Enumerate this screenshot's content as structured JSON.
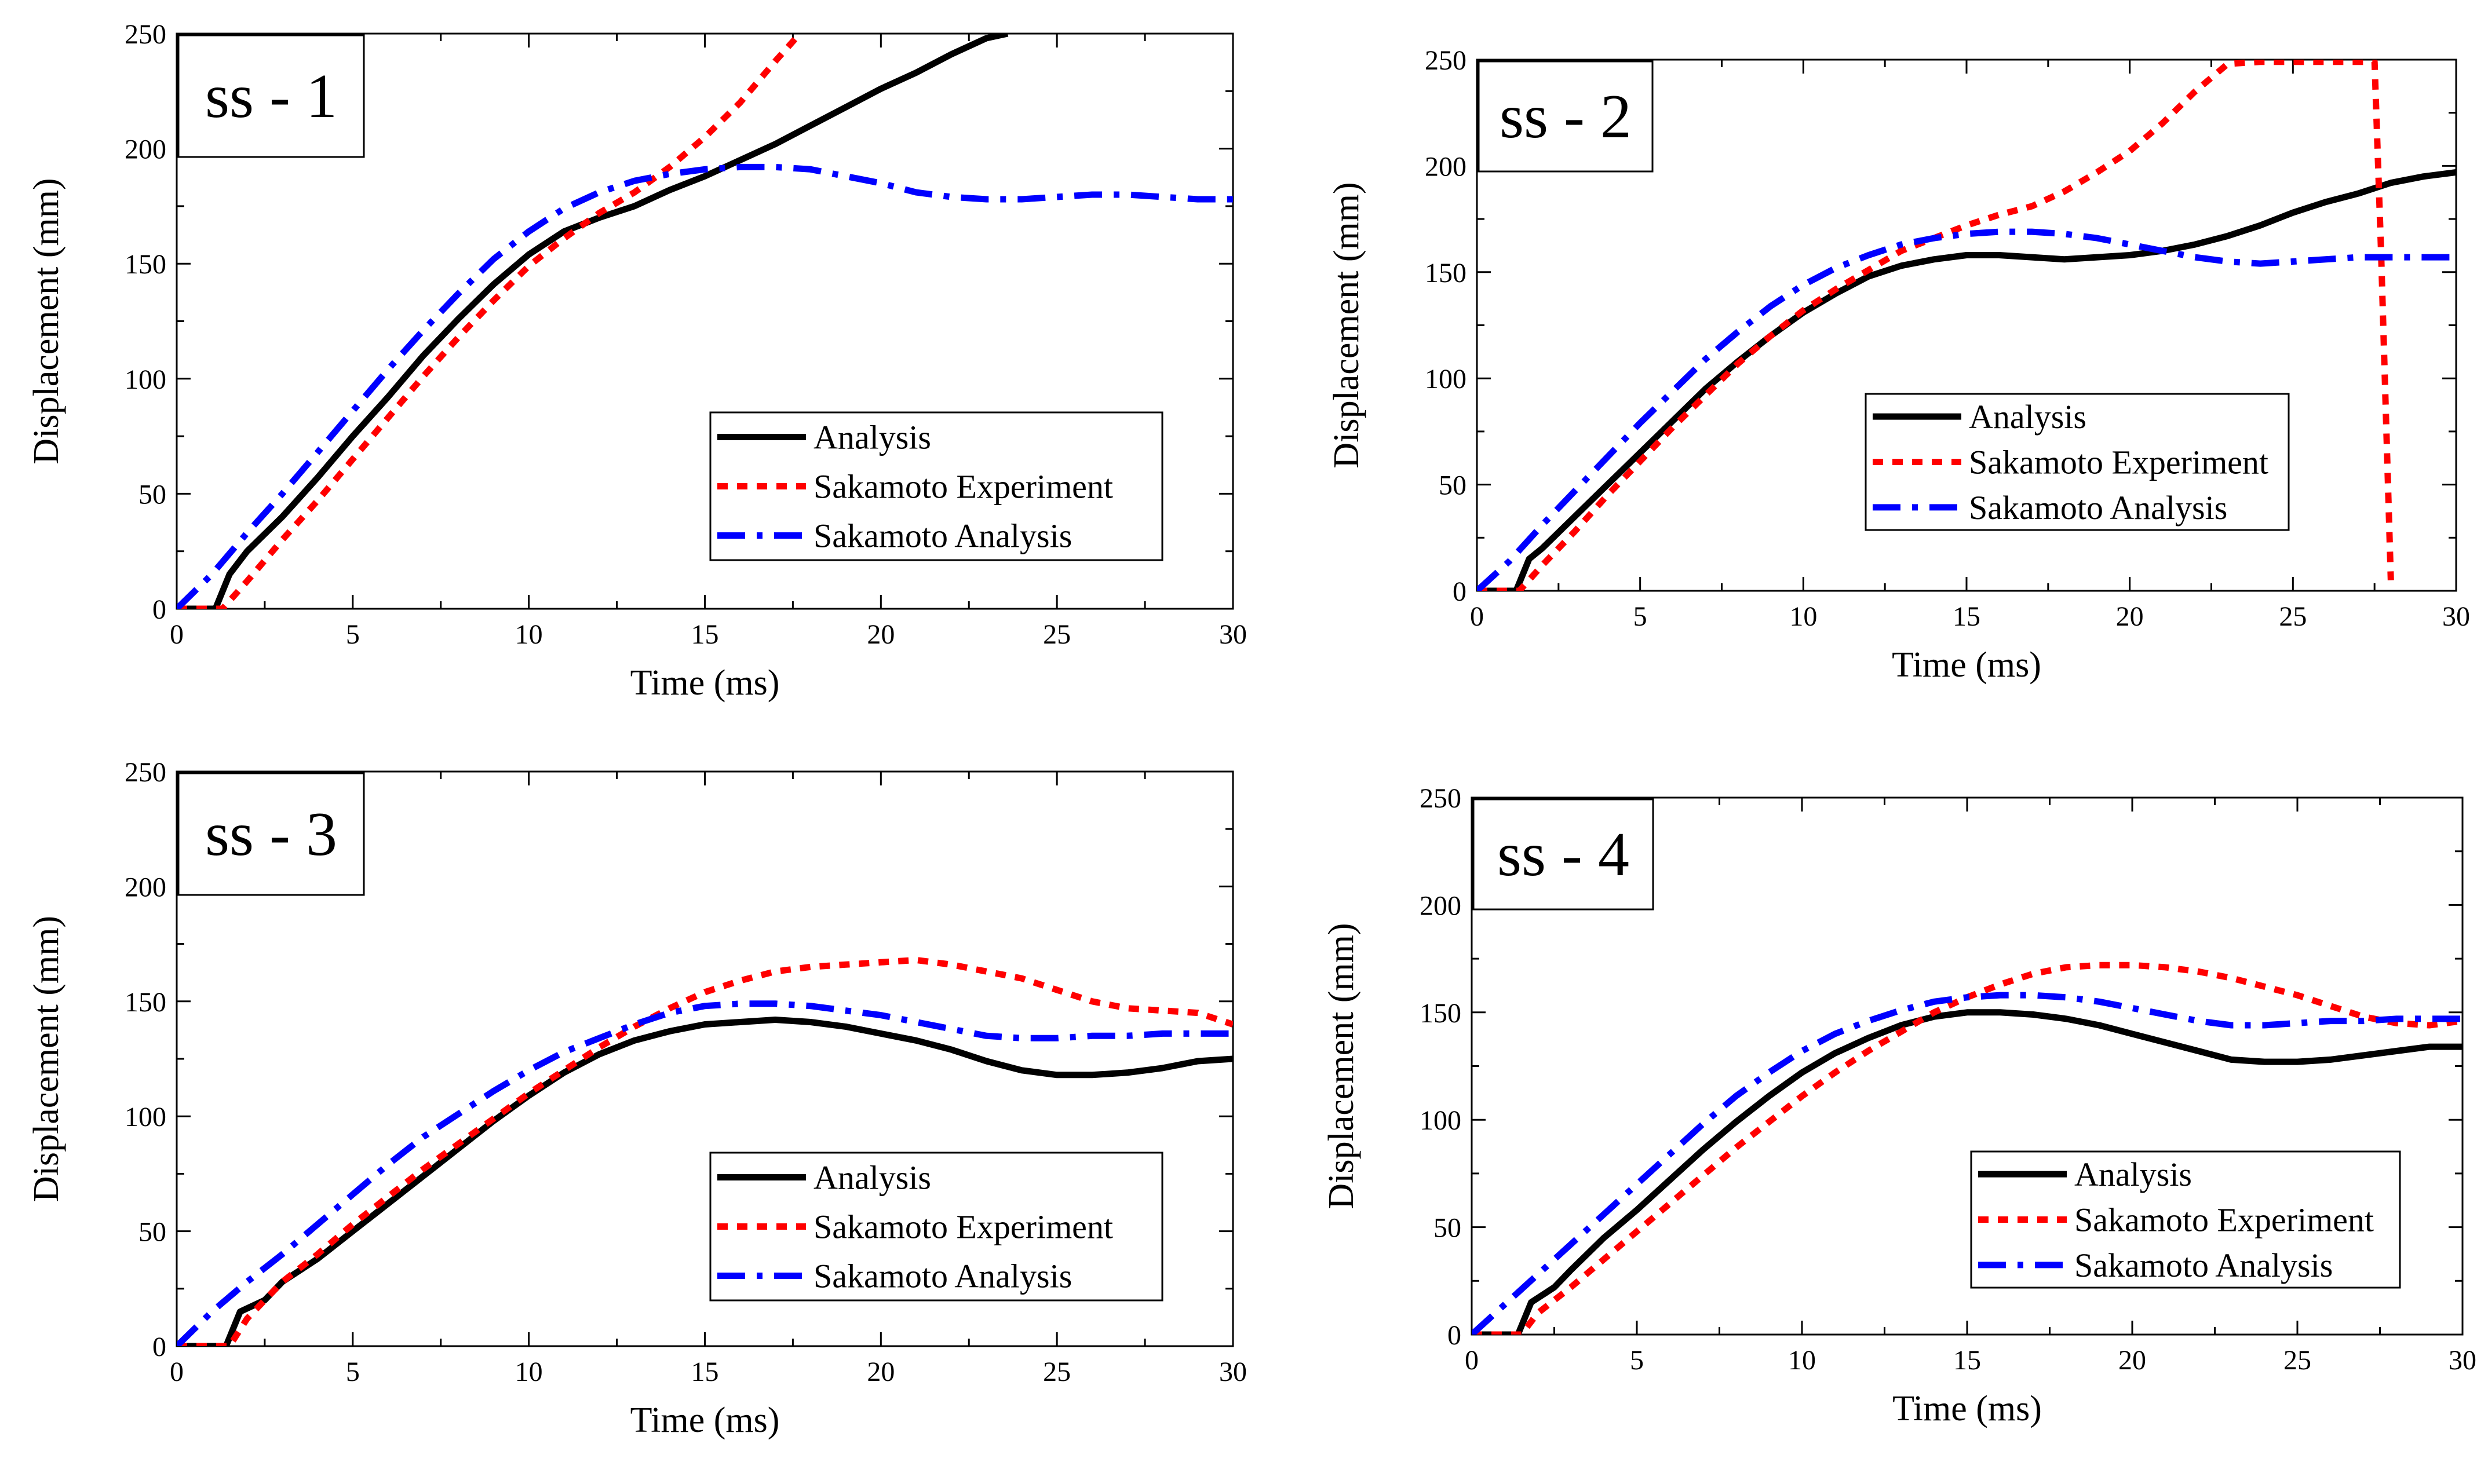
{
  "figure_title": "",
  "colors": {
    "analysis": "#000000",
    "experiment": "#ff0000",
    "sakamoto": "#0000ff"
  },
  "chart_data": [
    {
      "type": "line",
      "panel_label": "ss - 1",
      "xlabel": "Time (ms)",
      "ylabel": "Displacement (mm)",
      "xlim": [
        0,
        30
      ],
      "ylim": [
        0,
        250
      ],
      "xticks": [
        0,
        5,
        10,
        15,
        20,
        25,
        30
      ],
      "yticks": [
        0,
        50,
        100,
        150,
        200,
        250
      ],
      "legend_position": "lower-right",
      "series": [
        {
          "name": "Analysis",
          "style": "solid",
          "x": [
            0,
            1.1,
            1.5,
            2,
            3,
            4,
            5,
            6,
            7,
            8,
            9,
            10,
            11,
            12,
            13,
            14,
            15,
            16,
            17,
            18,
            19,
            20,
            21,
            22,
            23,
            23.6
          ],
          "y": [
            0,
            0,
            15,
            25,
            40,
            57,
            75,
            92,
            110,
            126,
            141,
            154,
            164,
            170,
            175,
            182,
            188,
            195,
            202,
            210,
            218,
            226,
            233,
            241,
            248,
            250
          ]
        },
        {
          "name": "Sakamoto Experiment",
          "style": "dotted",
          "x": [
            0,
            1.3,
            2,
            3,
            4,
            5,
            6,
            7,
            8,
            9,
            10,
            11,
            12,
            13,
            14,
            15,
            16,
            17,
            17.7
          ],
          "y": [
            0,
            0,
            12,
            30,
            47,
            65,
            83,
            101,
            118,
            134,
            149,
            161,
            172,
            181,
            192,
            205,
            220,
            238,
            250
          ]
        },
        {
          "name": "Sakamoto Analysis",
          "style": "dashdot",
          "x": [
            0,
            1,
            2,
            3,
            4,
            5,
            6,
            7,
            8,
            9,
            10,
            11,
            12,
            13,
            14,
            15,
            16,
            17,
            18,
            19,
            20,
            21,
            22,
            23,
            24,
            25,
            26,
            27,
            28,
            29,
            30
          ],
          "y": [
            0,
            15,
            33,
            50,
            68,
            86,
            104,
            121,
            137,
            152,
            164,
            174,
            181,
            186,
            189,
            191,
            192,
            192,
            191,
            188,
            185,
            181,
            179,
            178,
            178,
            179,
            180,
            180,
            179,
            178,
            178
          ]
        }
      ]
    },
    {
      "type": "line",
      "panel_label": "ss - 2",
      "xlabel": "Time (ms)",
      "ylabel": "Displacement (mm)",
      "xlim": [
        0,
        30
      ],
      "ylim": [
        0,
        250
      ],
      "xticks": [
        0,
        5,
        10,
        15,
        20,
        25,
        30
      ],
      "yticks": [
        0,
        50,
        100,
        150,
        200,
        250
      ],
      "legend_position": "lower-right",
      "series": [
        {
          "name": "Analysis",
          "style": "solid",
          "x": [
            0,
            1.2,
            1.6,
            2,
            3,
            4,
            5,
            6,
            7,
            8,
            9,
            10,
            11,
            12,
            13,
            14,
            15,
            16,
            17,
            18,
            19,
            20,
            21,
            22,
            23,
            24,
            25,
            26,
            27,
            28,
            29,
            30
          ],
          "y": [
            0,
            0,
            15,
            20,
            35,
            50,
            65,
            80,
            95,
            108,
            120,
            131,
            140,
            148,
            153,
            156,
            158,
            158,
            157,
            156,
            157,
            158,
            160,
            163,
            167,
            172,
            178,
            183,
            187,
            192,
            195,
            197
          ]
        },
        {
          "name": "Sakamoto Experiment",
          "style": "dotted",
          "x": [
            0,
            1.3,
            2,
            3,
            4,
            5,
            6,
            7,
            8,
            9,
            10,
            11,
            12,
            13,
            14,
            15,
            16,
            17,
            18,
            19,
            20,
            21,
            22,
            23,
            24,
            25,
            26,
            27,
            27.5,
            27.7,
            28
          ],
          "y": [
            0,
            0,
            12,
            28,
            45,
            61,
            77,
            92,
            107,
            120,
            132,
            142,
            151,
            160,
            166,
            172,
            177,
            181,
            188,
            197,
            207,
            220,
            235,
            248,
            249,
            249,
            249,
            249,
            249,
            160,
            5
          ]
        },
        {
          "name": "Sakamoto Analysis",
          "style": "dashdot",
          "x": [
            0,
            1,
            2,
            3,
            4,
            5,
            6,
            7,
            8,
            9,
            10,
            11,
            12,
            13,
            14,
            15,
            16,
            17,
            18,
            19,
            20,
            21,
            22,
            23,
            24,
            25,
            26,
            27,
            28,
            29,
            30
          ],
          "y": [
            0,
            14,
            31,
            47,
            63,
            79,
            94,
            109,
            122,
            134,
            144,
            152,
            158,
            163,
            166,
            168,
            169,
            169,
            168,
            166,
            163,
            160,
            157,
            155,
            154,
            155,
            156,
            157,
            157,
            157,
            157
          ]
        }
      ]
    },
    {
      "type": "line",
      "panel_label": "ss - 3",
      "xlabel": "Time (ms)",
      "ylabel": "Displacement (mm)",
      "xlim": [
        0,
        30
      ],
      "ylim": [
        0,
        250
      ],
      "xticks": [
        0,
        5,
        10,
        15,
        20,
        25,
        30
      ],
      "yticks": [
        0,
        50,
        100,
        150,
        200,
        250
      ],
      "legend_position": "lower-right",
      "series": [
        {
          "name": "Analysis",
          "style": "solid",
          "x": [
            0,
            1.4,
            1.8,
            2.5,
            3,
            4,
            5,
            6,
            7,
            8,
            9,
            10,
            11,
            12,
            13,
            14,
            15,
            16,
            17,
            18,
            19,
            20,
            21,
            22,
            23,
            24,
            25,
            26,
            27,
            28,
            29,
            30
          ],
          "y": [
            0,
            0,
            15,
            20,
            28,
            38,
            50,
            62,
            74,
            86,
            98,
            109,
            119,
            127,
            133,
            137,
            140,
            141,
            142,
            141,
            139,
            136,
            133,
            129,
            124,
            120,
            118,
            118,
            119,
            121,
            124,
            125
          ]
        },
        {
          "name": "Sakamoto Experiment",
          "style": "dotted",
          "x": [
            0,
            1.5,
            2,
            3,
            4,
            5,
            6,
            7,
            8,
            9,
            10,
            11,
            12,
            13,
            14,
            15,
            16,
            17,
            18,
            19,
            20,
            21,
            22,
            23,
            24,
            25,
            26,
            27,
            28,
            29,
            30
          ],
          "y": [
            0,
            0,
            12,
            28,
            40,
            53,
            65,
            77,
            88,
            99,
            110,
            120,
            130,
            139,
            147,
            154,
            159,
            163,
            165,
            166,
            167,
            168,
            166,
            163,
            160,
            155,
            150,
            147,
            146,
            145,
            140
          ]
        },
        {
          "name": "Sakamoto Analysis",
          "style": "dashdot",
          "x": [
            0,
            1,
            2,
            3,
            4,
            5,
            6,
            7,
            8,
            9,
            10,
            11,
            12,
            13,
            14,
            15,
            16,
            17,
            18,
            19,
            20,
            21,
            22,
            23,
            24,
            25,
            26,
            27,
            28,
            29,
            30
          ],
          "y": [
            0,
            15,
            28,
            40,
            53,
            66,
            79,
            91,
            101,
            111,
            120,
            128,
            134,
            140,
            145,
            148,
            149,
            149,
            148,
            146,
            144,
            141,
            138,
            135,
            134,
            134,
            135,
            135,
            136,
            136,
            136
          ]
        }
      ]
    },
    {
      "type": "line",
      "panel_label": "ss - 4",
      "xlabel": "Time (ms)",
      "ylabel": "Displacement (mm)",
      "xlim": [
        0,
        30
      ],
      "ylim": [
        0,
        250
      ],
      "xticks": [
        0,
        5,
        10,
        15,
        20,
        25,
        30
      ],
      "yticks": [
        0,
        50,
        100,
        150,
        200,
        250
      ],
      "legend_position": "lower-right",
      "series": [
        {
          "name": "Analysis",
          "style": "solid",
          "x": [
            0,
            1.4,
            1.8,
            2.5,
            3,
            4,
            5,
            6,
            7,
            8,
            9,
            10,
            11,
            12,
            13,
            14,
            15,
            16,
            17,
            18,
            19,
            20,
            21,
            22,
            23,
            24,
            25,
            26,
            27,
            28,
            29,
            30
          ],
          "y": [
            0,
            0,
            15,
            22,
            30,
            45,
            58,
            72,
            86,
            99,
            111,
            122,
            131,
            138,
            144,
            148,
            150,
            150,
            149,
            147,
            144,
            140,
            136,
            132,
            128,
            127,
            127,
            128,
            130,
            132,
            134,
            134
          ]
        },
        {
          "name": "Sakamoto Experiment",
          "style": "dotted",
          "x": [
            0,
            1.5,
            2,
            3,
            4,
            5,
            6,
            7,
            8,
            9,
            10,
            11,
            12,
            13,
            14,
            15,
            16,
            17,
            18,
            19,
            20,
            21,
            22,
            23,
            24,
            25,
            26,
            27,
            28,
            29,
            30
          ],
          "y": [
            0,
            0,
            10,
            22,
            35,
            48,
            61,
            74,
            87,
            99,
            111,
            122,
            132,
            141,
            150,
            157,
            163,
            168,
            171,
            172,
            172,
            171,
            169,
            166,
            162,
            158,
            153,
            148,
            145,
            144,
            146
          ]
        },
        {
          "name": "Sakamoto Analysis",
          "style": "dashdot",
          "x": [
            0,
            1,
            2,
            3,
            4,
            5,
            6,
            7,
            8,
            9,
            10,
            11,
            12,
            13,
            14,
            15,
            16,
            17,
            18,
            19,
            20,
            21,
            22,
            23,
            24,
            25,
            26,
            27,
            28,
            29,
            30
          ],
          "y": [
            0,
            14,
            28,
            42,
            56,
            70,
            84,
            98,
            111,
            122,
            132,
            140,
            146,
            151,
            155,
            157,
            158,
            158,
            157,
            155,
            152,
            149,
            146,
            144,
            144,
            145,
            146,
            146,
            147,
            147,
            147
          ]
        }
      ]
    }
  ]
}
